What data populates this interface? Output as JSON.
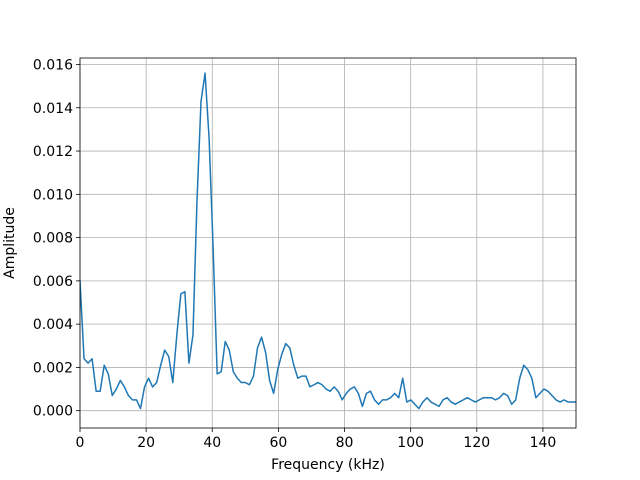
{
  "chart_data": {
    "type": "line",
    "title": "",
    "xlabel": "Frequency (kHz)",
    "ylabel": "Amplitude",
    "xlim": [
      0,
      150
    ],
    "ylim": [
      -0.0008,
      0.0163
    ],
    "grid": true,
    "legend": "none",
    "xticks": [
      0,
      20,
      40,
      60,
      80,
      100,
      120,
      140
    ],
    "xtick_labels": [
      "0",
      "20",
      "40",
      "60",
      "80",
      "100",
      "120",
      "140"
    ],
    "yticks": [
      0.0,
      0.002,
      0.004,
      0.006,
      0.008,
      0.01,
      0.012,
      0.014,
      0.016
    ],
    "ytick_labels": [
      "0.000",
      "0.002",
      "0.004",
      "0.006",
      "0.008",
      "0.010",
      "0.012",
      "0.014",
      "0.016"
    ],
    "colors": {
      "series": "#1f77b4"
    },
    "series": [
      {
        "x": [
          0,
          1.22,
          2.44,
          3.66,
          4.88,
          6.1,
          7.32,
          8.54,
          9.76,
          10.98,
          12.2,
          13.42,
          14.64,
          15.86,
          17.08,
          18.3,
          19.52,
          20.74,
          21.96,
          23.18,
          24.4,
          25.62,
          26.84,
          28.06,
          29.28,
          30.5,
          31.72,
          32.94,
          34.16,
          35.38,
          36.6,
          37.82,
          39.04,
          40.26,
          41.48,
          42.7,
          43.92,
          45.14,
          46.36,
          47.58,
          48.8,
          50.02,
          51.24,
          52.46,
          53.68,
          54.9,
          56.12,
          57.34,
          58.56,
          59.78,
          61.0,
          62.22,
          63.44,
          64.66,
          65.88,
          67.1,
          68.32,
          69.54,
          70.76,
          71.98,
          73.2,
          74.42,
          75.64,
          76.86,
          78.08,
          79.3,
          80.52,
          81.74,
          82.96,
          84.18,
          85.4,
          86.62,
          87.84,
          89.06,
          90.28,
          91.5,
          92.72,
          93.94,
          95.16,
          96.38,
          97.6,
          98.82,
          100.04,
          101.26,
          102.48,
          103.7,
          104.92,
          106.14,
          107.36,
          108.58,
          109.8,
          111.02,
          112.24,
          113.46,
          114.68,
          115.9,
          117.12,
          118.34,
          119.56,
          120.78,
          122.0,
          123.22,
          124.44,
          125.66,
          126.88,
          128.1,
          129.32,
          130.54,
          131.76,
          132.98,
          134.2,
          135.42,
          136.64,
          137.86,
          139.08,
          140.3,
          141.52,
          142.74,
          143.96,
          145.18,
          146.4,
          147.62,
          148.84,
          150.06
        ],
        "y": [
          0.006,
          0.0024,
          0.0022,
          0.0024,
          0.0009,
          0.0009,
          0.0021,
          0.0017,
          0.0007,
          0.001,
          0.0014,
          0.0011,
          0.0007,
          0.0005,
          0.0005,
          0.0001,
          0.0011,
          0.0015,
          0.0011,
          0.0013,
          0.0021,
          0.0028,
          0.0025,
          0.0013,
          0.0035,
          0.0054,
          0.0055,
          0.0022,
          0.0035,
          0.0097,
          0.0143,
          0.0156,
          0.0126,
          0.0075,
          0.0017,
          0.0018,
          0.0032,
          0.0028,
          0.0018,
          0.0015,
          0.0013,
          0.0013,
          0.0012,
          0.0016,
          0.0029,
          0.0034,
          0.0027,
          0.0014,
          0.0008,
          0.0019,
          0.0026,
          0.0031,
          0.0029,
          0.0021,
          0.0015,
          0.0016,
          0.0016,
          0.0011,
          0.0012,
          0.0013,
          0.0012,
          0.001,
          0.0009,
          0.0011,
          0.0009,
          0.0005,
          0.0008,
          0.001,
          0.0011,
          0.0008,
          0.0002,
          0.0008,
          0.0009,
          0.0005,
          0.0003,
          0.0005,
          0.0005,
          0.0006,
          0.0008,
          0.0006,
          0.0015,
          0.0004,
          0.0005,
          0.0003,
          0.0001,
          0.0004,
          0.0006,
          0.0004,
          0.0003,
          0.0002,
          0.0005,
          0.0006,
          0.0004,
          0.0003,
          0.0004,
          0.0005,
          0.0006,
          0.0005,
          0.0004,
          0.0005,
          0.0006,
          0.0006,
          0.0006,
          0.0005,
          0.0006,
          0.0008,
          0.0007,
          0.0003,
          0.0005,
          0.0015,
          0.0021,
          0.0019,
          0.0015,
          0.0006,
          0.0008,
          0.001,
          0.0009,
          0.0007,
          0.0005,
          0.0004,
          0.0005,
          0.0004,
          0.0004,
          0.0004
        ]
      }
    ]
  }
}
